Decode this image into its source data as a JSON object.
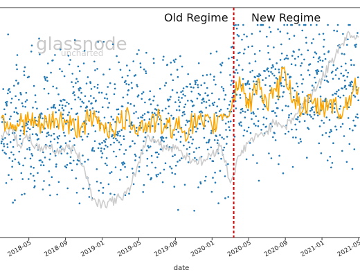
{
  "chart_data": {
    "type": "line",
    "xlabel": "date",
    "ylabel": "",
    "x_tick_labels": [
      "2018-05",
      "2018-09",
      "2019-01",
      "2019-05",
      "2019-09",
      "2020-01",
      "2020-05",
      "2020-09",
      "2021-01",
      "2021-05"
    ],
    "x_range": [
      "2018-02",
      "2021-05"
    ],
    "annotations": [
      {
        "text": "Old Regime"
      },
      {
        "text": "New Regime"
      }
    ],
    "divider_date": "2020-03-12",
    "watermark": {
      "main": "glassnode",
      "sub": "uncharted"
    },
    "y_relative_scale": [
      0,
      100
    ],
    "series": [
      {
        "style": "scatter",
        "color": "#1f77b4",
        "note_points": "daily values",
        "segments": [
          {
            "from": "2018-02",
            "to": "2020-03",
            "center": 52,
            "spread": 30
          },
          {
            "from": "2020-03",
            "to": "2021-05",
            "center": 68,
            "spread": 30
          }
        ]
      },
      {
        "style": "line",
        "color": "#ffa500",
        "points": [
          [
            "2018-02",
            53
          ],
          [
            "2018-03",
            51
          ],
          [
            "2018-04",
            50
          ],
          [
            "2018-05",
            52
          ],
          [
            "2018-06",
            49
          ],
          [
            "2018-07",
            50
          ],
          [
            "2018-08",
            53
          ],
          [
            "2018-09",
            51
          ],
          [
            "2018-10",
            48
          ],
          [
            "2018-11",
            51
          ],
          [
            "2018-12",
            52
          ],
          [
            "2019-01",
            50
          ],
          [
            "2019-02",
            48
          ],
          [
            "2019-03",
            51
          ],
          [
            "2019-04",
            53
          ],
          [
            "2019-05",
            49
          ],
          [
            "2019-06",
            50
          ],
          [
            "2019-07",
            52
          ],
          [
            "2019-08",
            48
          ],
          [
            "2019-09",
            50
          ],
          [
            "2019-10",
            47
          ],
          [
            "2019-11",
            51
          ],
          [
            "2019-12",
            50
          ],
          [
            "2020-01",
            49
          ],
          [
            "2020-02",
            55
          ],
          [
            "2020-03",
            57
          ],
          [
            "2020-04",
            73
          ],
          [
            "2020-05",
            58
          ],
          [
            "2020-06",
            72
          ],
          [
            "2020-07",
            58
          ],
          [
            "2020-08",
            66
          ],
          [
            "2020-09",
            75
          ],
          [
            "2020-10",
            62
          ],
          [
            "2020-11",
            58
          ],
          [
            "2020-12",
            60
          ],
          [
            "2021-01",
            57
          ],
          [
            "2021-02",
            62
          ],
          [
            "2021-03",
            55
          ],
          [
            "2021-04",
            64
          ],
          [
            "2021-05",
            68
          ]
        ]
      },
      {
        "style": "line",
        "color": "#cccccc",
        "points": [
          [
            "2018-02",
            45
          ],
          [
            "2018-03",
            48
          ],
          [
            "2018-04",
            40
          ],
          [
            "2018-05",
            44
          ],
          [
            "2018-06",
            38
          ],
          [
            "2018-07",
            40
          ],
          [
            "2018-08",
            37
          ],
          [
            "2018-09",
            39
          ],
          [
            "2018-10",
            38
          ],
          [
            "2018-11",
            30
          ],
          [
            "2018-12",
            14
          ],
          [
            "2019-01",
            12
          ],
          [
            "2019-02",
            13
          ],
          [
            "2019-03",
            15
          ],
          [
            "2019-04",
            18
          ],
          [
            "2019-05",
            32
          ],
          [
            "2019-06",
            45
          ],
          [
            "2019-07",
            42
          ],
          [
            "2019-08",
            38
          ],
          [
            "2019-09",
            40
          ],
          [
            "2019-10",
            35
          ],
          [
            "2019-11",
            33
          ],
          [
            "2019-12",
            32
          ],
          [
            "2020-01",
            36
          ],
          [
            "2020-02",
            40
          ],
          [
            "2020-03",
            22
          ],
          [
            "2020-04",
            35
          ],
          [
            "2020-05",
            42
          ],
          [
            "2020-06",
            44
          ],
          [
            "2020-07",
            47
          ],
          [
            "2020-08",
            52
          ],
          [
            "2020-09",
            49
          ],
          [
            "2020-10",
            54
          ],
          [
            "2020-11",
            60
          ],
          [
            "2020-12",
            66
          ],
          [
            "2021-01",
            72
          ],
          [
            "2021-02",
            80
          ],
          [
            "2021-03",
            88
          ],
          [
            "2021-04",
            94
          ],
          [
            "2021-05",
            92
          ]
        ]
      }
    ]
  }
}
